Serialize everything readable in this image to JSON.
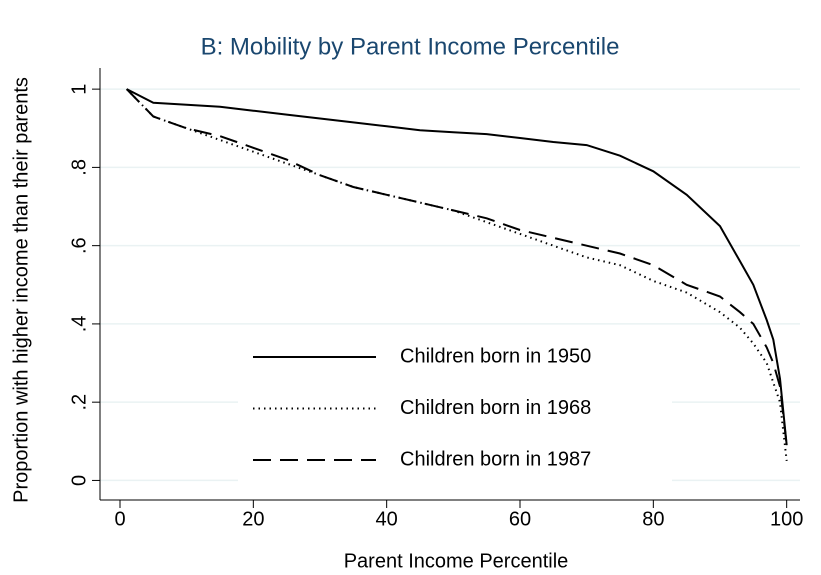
{
  "chart_data": {
    "type": "line",
    "title": "B: Mobility by Parent Income Percentile",
    "xlabel": "Parent Income Percentile",
    "ylabel": "Proportion with higher income than their parents",
    "x": [
      1,
      5,
      10,
      15,
      20,
      25,
      30,
      35,
      40,
      45,
      50,
      55,
      60,
      65,
      70,
      75,
      80,
      85,
      90,
      93,
      95,
      97,
      98,
      99,
      100
    ],
    "series": [
      {
        "name": "Children born in 1950",
        "color": "#000000",
        "style": "solid",
        "values": [
          1,
          0.965,
          0.96,
          0.955,
          0.945,
          0.935,
          0.925,
          0.915,
          0.905,
          0.895,
          0.89,
          0.885,
          0.875,
          0.865,
          0.857,
          0.83,
          0.79,
          0.73,
          0.65,
          0.56,
          0.5,
          0.41,
          0.36,
          0.26,
          0.09
        ]
      },
      {
        "name": "Children born in 1968",
        "color": "#000000",
        "style": "dotted",
        "values": [
          1,
          0.93,
          0.9,
          0.87,
          0.84,
          0.81,
          0.78,
          0.75,
          0.73,
          0.71,
          0.69,
          0.66,
          0.63,
          0.6,
          0.57,
          0.55,
          0.51,
          0.48,
          0.43,
          0.39,
          0.35,
          0.3,
          0.25,
          0.2,
          0.05
        ]
      },
      {
        "name": "Children born in 1987",
        "color": "#000000",
        "style": "dashed",
        "values": [
          1,
          0.93,
          0.9,
          0.88,
          0.85,
          0.82,
          0.78,
          0.75,
          0.73,
          0.71,
          0.69,
          0.67,
          0.64,
          0.62,
          0.6,
          0.58,
          0.55,
          0.5,
          0.47,
          0.43,
          0.4,
          0.34,
          0.3,
          0.24,
          0.09
        ]
      }
    ],
    "xlim": [
      -3,
      102
    ],
    "ylim": [
      -0.05,
      1.054
    ],
    "xticks": [
      0,
      20,
      40,
      60,
      80,
      100
    ],
    "yticks": [
      0,
      {
        "value": 0.2,
        "label": ".2"
      },
      {
        "value": 0.4,
        "label": ".4"
      },
      {
        "value": 0.6,
        "label": ".6"
      },
      {
        "value": 0.8,
        "label": ".8"
      },
      1
    ],
    "grid": true
  }
}
